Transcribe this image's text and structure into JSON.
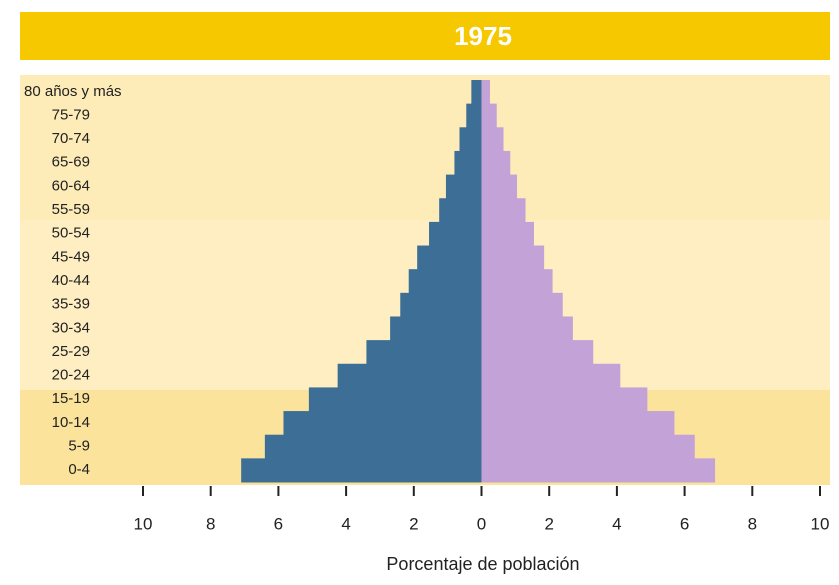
{
  "chart_data": {
    "type": "pyramid",
    "title": "1975",
    "xlabel": "Porcentaje de población",
    "categories": [
      "0-4",
      "5-9",
      "10-14",
      "15-19",
      "20-24",
      "25-29",
      "30-34",
      "35-39",
      "40-44",
      "45-49",
      "50-54",
      "55-59",
      "60-64",
      "65-69",
      "70-74",
      "75-79",
      "80 años y más"
    ],
    "series": [
      {
        "color": "#3d6f96",
        "side": "left",
        "values": [
          7.1,
          6.4,
          5.85,
          5.1,
          4.25,
          3.4,
          2.7,
          2.4,
          2.15,
          1.9,
          1.55,
          1.25,
          1.05,
          0.8,
          0.65,
          0.45,
          0.3
        ]
      },
      {
        "color": "#c3a2d8",
        "side": "right",
        "values": [
          6.9,
          6.3,
          5.7,
          4.9,
          4.1,
          3.3,
          2.7,
          2.4,
          2.1,
          1.85,
          1.55,
          1.3,
          1.05,
          0.85,
          0.65,
          0.45,
          0.25
        ]
      }
    ],
    "xlim": [
      -10,
      10
    ],
    "xticks": [
      {
        "value": -10,
        "label": "10"
      },
      {
        "value": -8,
        "label": "8"
      },
      {
        "value": -6,
        "label": "6"
      },
      {
        "value": -4,
        "label": "4"
      },
      {
        "value": -2,
        "label": "2"
      },
      0,
      2,
      4,
      6,
      8,
      10
    ]
  }
}
